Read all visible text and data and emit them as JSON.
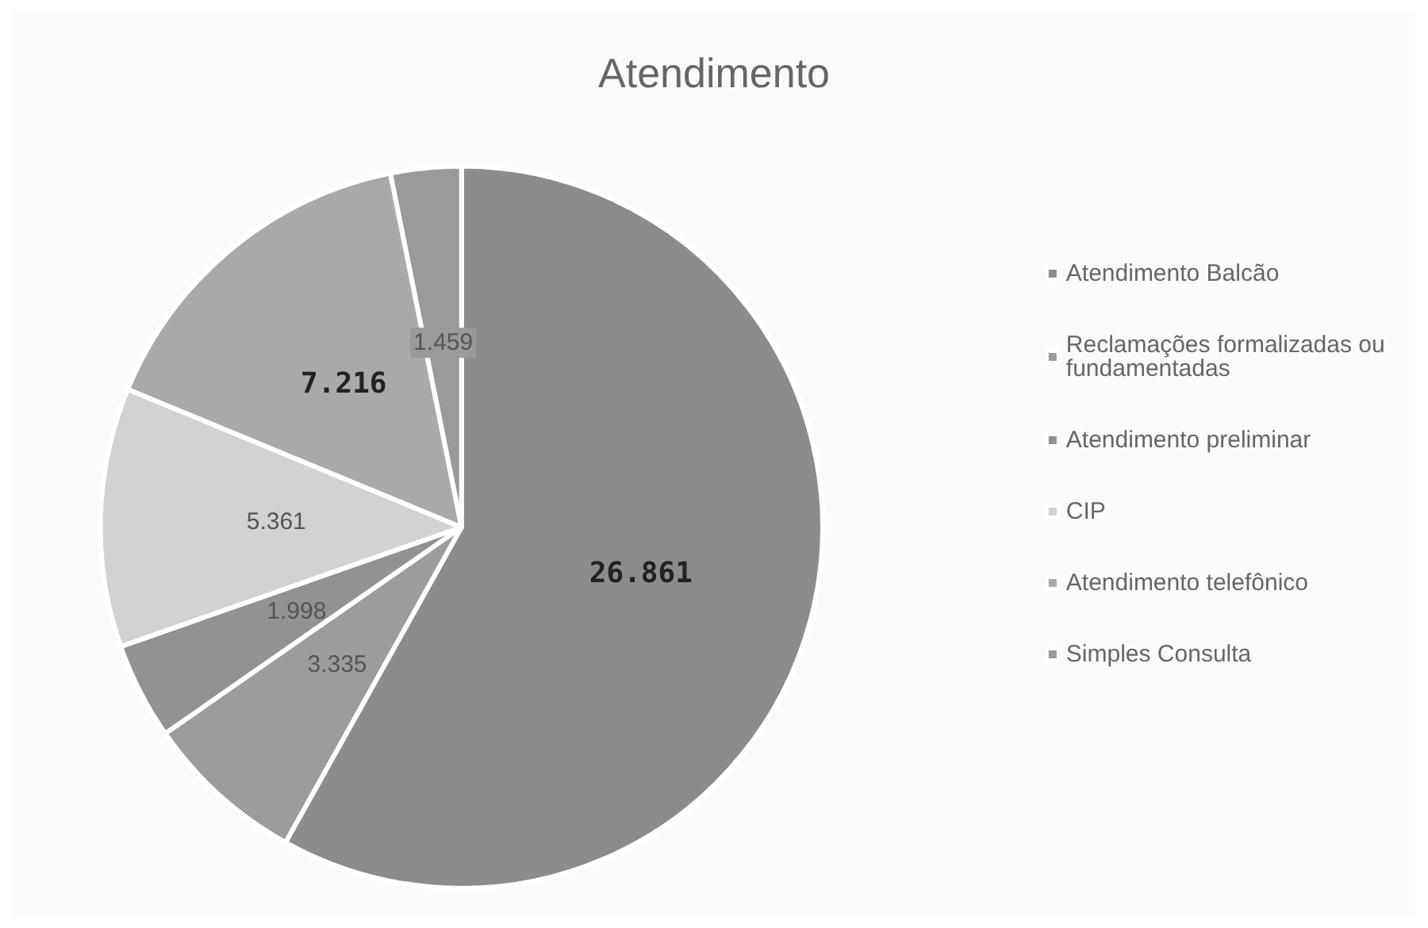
{
  "chart_data": {
    "type": "pie",
    "title": "Atendimento",
    "categories": [
      "Atendimento Balcão",
      "Reclamações formalizadas ou fundamentadas",
      "Atendimento preliminar",
      "CIP",
      "Atendimento telefônico",
      "Simples Consulta"
    ],
    "values": [
      26861,
      3335,
      1998,
      5361,
      7216,
      1459
    ],
    "value_labels": [
      "26.861",
      "3.335",
      "1.998",
      "5.361",
      "7.216",
      "1.459"
    ],
    "colors": [
      "#8c8c8c",
      "#9c9c9c",
      "#929292",
      "#d2d2d2",
      "#a9a9a9",
      "#9a9a9a"
    ],
    "legend": "right"
  }
}
